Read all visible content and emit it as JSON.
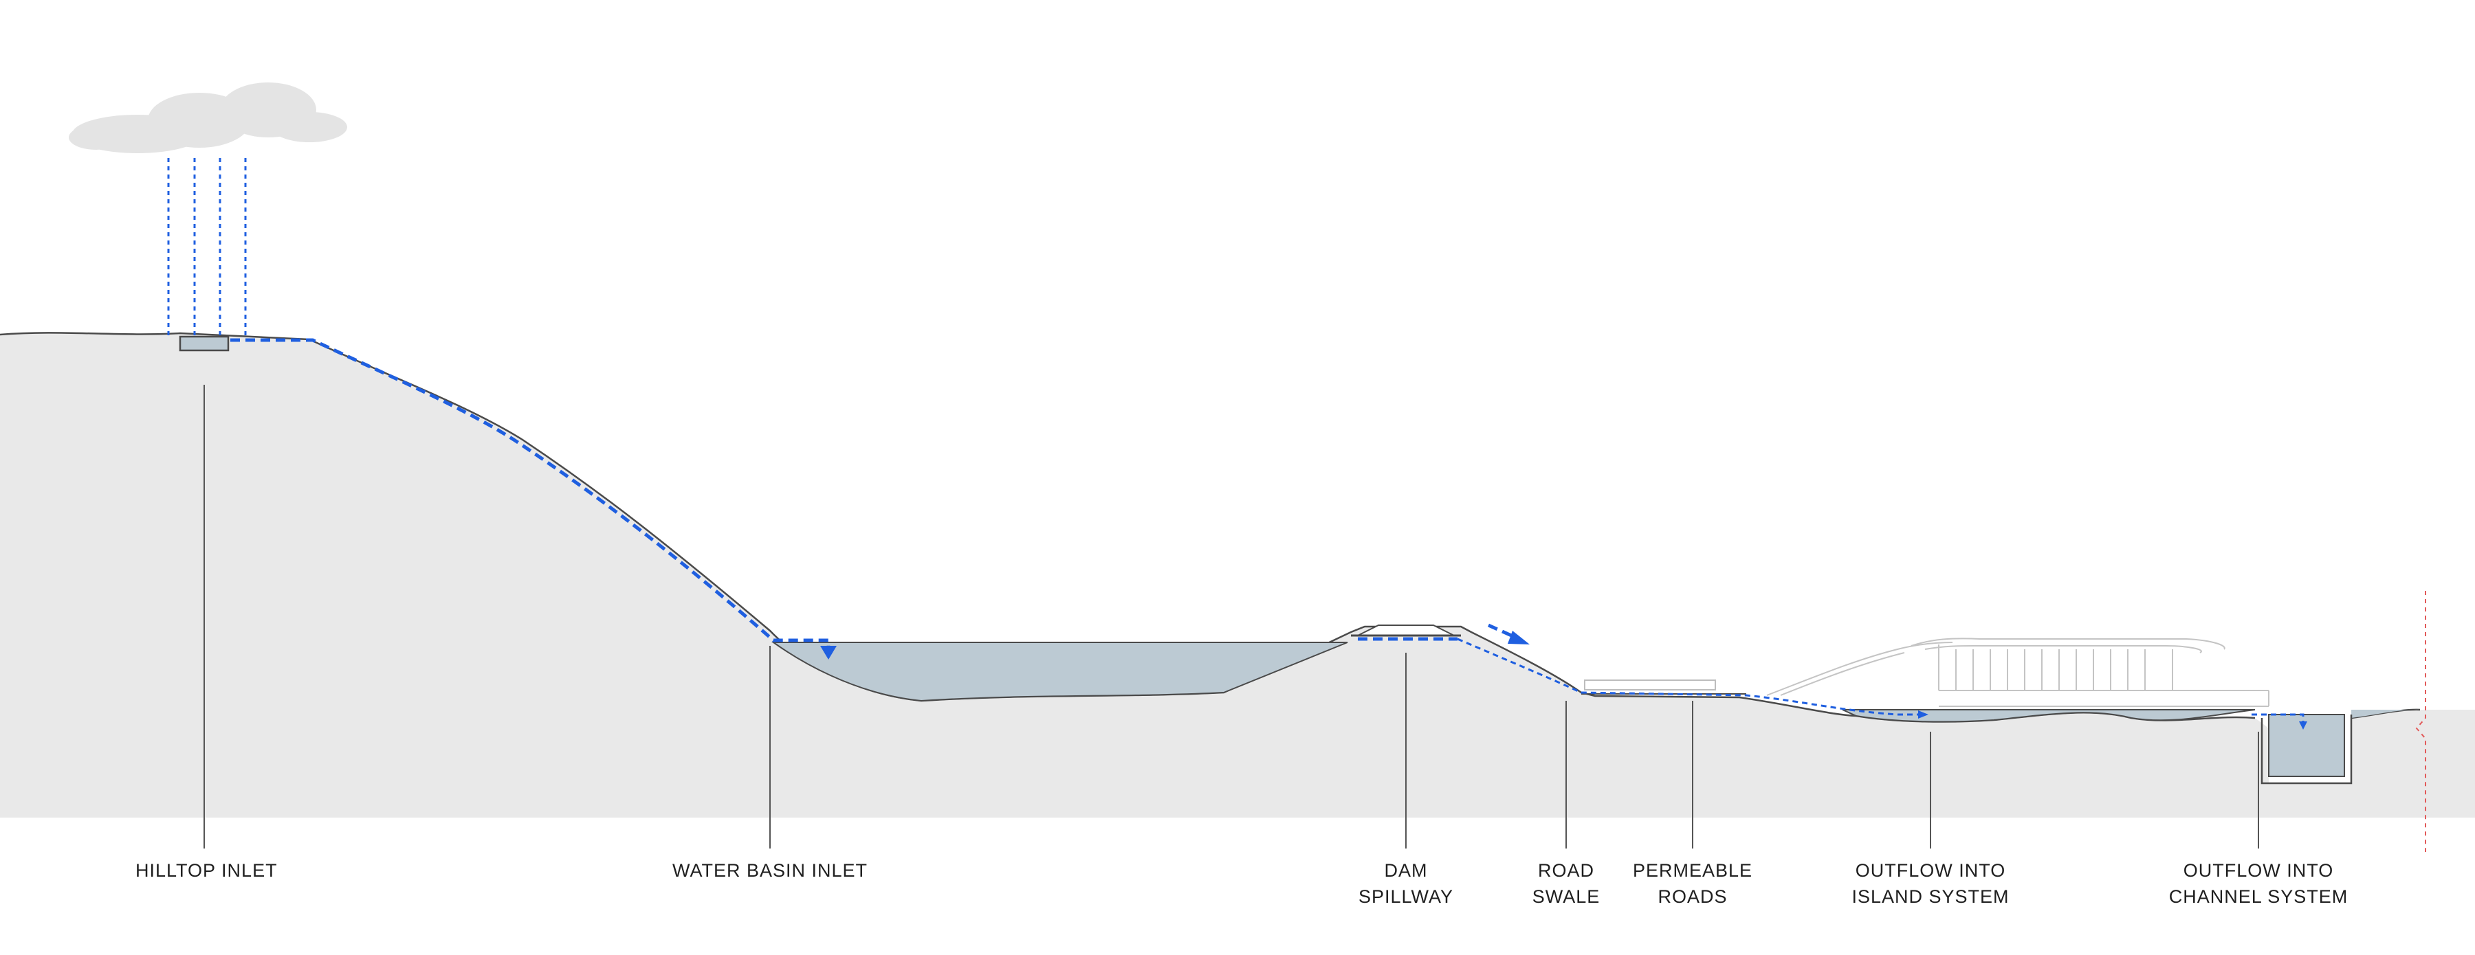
{
  "colors": {
    "ground": "#e9e9e9",
    "water": "#bccad3",
    "outline": "#4a4a4a",
    "flow": "#1f5fe0",
    "cloud": "#e4e4e4",
    "boundary": "#e25a5a",
    "leader": "#555555"
  },
  "icons": [
    "cloud-icon",
    "rain-icon",
    "flow-arrow-icon"
  ],
  "labels": {
    "hilltop_inlet": "HILLTOP INLET",
    "water_basin_inlet": "WATER BASIN INLET",
    "dam_spillway": [
      "DAM",
      "SPILLWAY"
    ],
    "road_swale": [
      "ROAD",
      "SWALE"
    ],
    "permeable_roads": [
      "PERMEABLE",
      "ROADS"
    ],
    "outflow_island": [
      "OUTFLOW INTO",
      "ISLAND SYSTEM"
    ],
    "outflow_channel": [
      "OUTFLOW INTO",
      "CHANNEL SYSTEM"
    ]
  }
}
